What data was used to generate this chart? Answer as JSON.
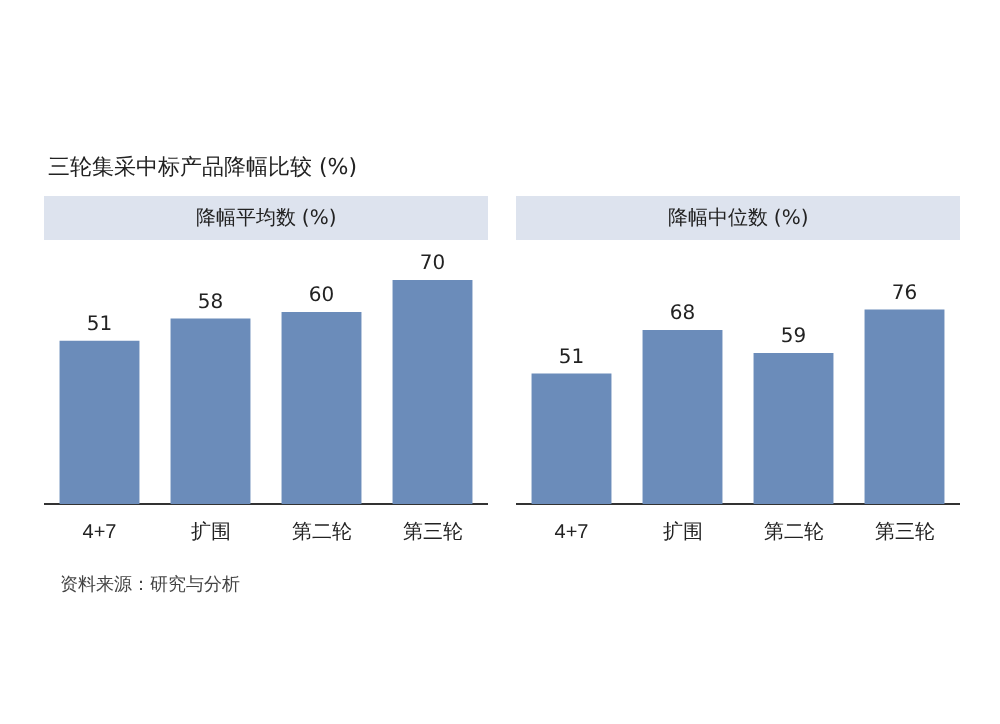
{
  "chart_data": [
    {
      "type": "bar",
      "title": "三轮集采中标产品降幅比较 (%)",
      "subtitle": "降幅平均数 (%)",
      "categories": [
        "4+7",
        "扩围",
        "第二轮",
        "第三轮"
      ],
      "values": [
        51,
        58,
        60,
        70
      ],
      "color": "#6b8cba",
      "data_labels": true,
      "grid": false,
      "legend": false,
      "annotations": [
        "资料来源：研究与分析"
      ]
    },
    {
      "type": "bar",
      "subtitle": "降幅中位数 (%)",
      "categories": [
        "4+7",
        "扩围",
        "第二轮",
        "第三轮"
      ],
      "values": [
        51,
        68,
        59,
        76
      ],
      "color": "#6b8cba",
      "data_labels": true,
      "grid": false,
      "legend": false
    }
  ]
}
